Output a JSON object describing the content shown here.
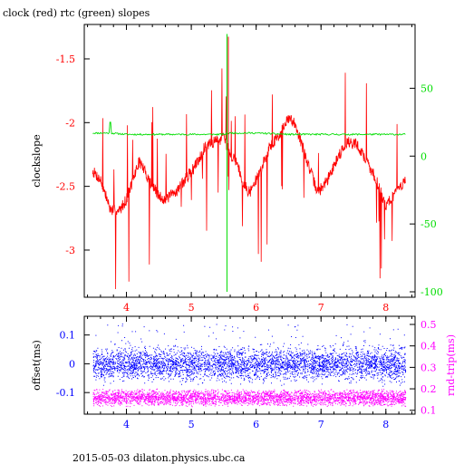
{
  "chart_data": [
    {
      "type": "line",
      "title": "clock (red) rtc (green) slopes",
      "ylabel": "clockslope",
      "xlim": [
        3.35,
        8.45
      ],
      "ylim": [
        -3.37,
        -1.23
      ],
      "xticks": [
        "4",
        "5",
        "6",
        "7",
        "8"
      ],
      "yticks": [
        "-1.5",
        "-2",
        "-2.5",
        "-3"
      ],
      "y2lim": [
        -104,
        97
      ],
      "y2ticks": [
        "50",
        "0",
        "-50",
        "-100"
      ],
      "colors": {
        "left_axis": "#ff0000",
        "right_axis": "#00dd00",
        "bottom_axis": "#ff0000"
      },
      "series": [
        {
          "color": "#ff0000",
          "axis": "left",
          "x": [
            3.48,
            3.6,
            3.75,
            3.88,
            4.0,
            4.2,
            4.35,
            4.5,
            4.6,
            4.75,
            4.9,
            5.05,
            5.2,
            5.35,
            5.5,
            5.6,
            5.7,
            5.8,
            5.9,
            6.05,
            6.2,
            6.35,
            6.5,
            6.6,
            6.72,
            6.85,
            6.95,
            7.1,
            7.25,
            7.4,
            7.55,
            7.7,
            7.85,
            8.0,
            8.15,
            8.3
          ],
          "y": [
            -2.38,
            -2.45,
            -2.68,
            -2.7,
            -2.6,
            -2.3,
            -2.45,
            -2.58,
            -2.6,
            -2.55,
            -2.45,
            -2.35,
            -2.2,
            -2.15,
            -2.12,
            -2.25,
            -2.3,
            -2.48,
            -2.55,
            -2.4,
            -2.2,
            -2.1,
            -1.97,
            -2.0,
            -2.2,
            -2.4,
            -2.55,
            -2.45,
            -2.28,
            -2.15,
            -2.17,
            -2.3,
            -2.45,
            -2.65,
            -2.55,
            -2.45
          ]
        },
        {
          "color": "#00dd00",
          "axis": "right",
          "x": [
            3.48,
            3.75,
            4.0,
            4.5,
            5.0,
            5.5,
            5.6,
            6.0,
            6.5,
            7.0,
            7.5,
            8.0,
            8.3
          ],
          "y": [
            17,
            17,
            16,
            16,
            16,
            16,
            17,
            17,
            16,
            16,
            16,
            16,
            16
          ]
        }
      ],
      "annotations": "red series has many short vertical spikes; green series has a single large spike near x = 5.55 reaching about +90 and -100"
    },
    {
      "type": "scatter",
      "ylabel": "offset(ms)",
      "y2label": "rnd-trip(ms)",
      "xlim": [
        3.35,
        8.45
      ],
      "ylim": [
        -0.175,
        0.165
      ],
      "xticks": [
        "4",
        "5",
        "6",
        "7",
        "8"
      ],
      "yticks": [
        "0.1",
        "0",
        "-0.1"
      ],
      "y2lim": [
        0.082,
        0.538
      ],
      "y2ticks": [
        "0.5",
        "0.4",
        "0.3",
        "0.2",
        "0.1"
      ],
      "colors": {
        "left_axis": "#0000ff",
        "right_axis": "#ff00ff",
        "bottom_axis": "#0000ff"
      },
      "series": [
        {
          "color": "#0000ff",
          "axis": "left",
          "x_range": [
            3.48,
            8.3
          ],
          "y_center": 0.0,
          "y_spread": [
            -0.05,
            0.05
          ],
          "outliers_up_to": 0.14
        },
        {
          "color": "#ff00ff",
          "axis": "right",
          "x_range": [
            3.48,
            8.3
          ],
          "y_center": 0.16,
          "y_spread": [
            0.13,
            0.2
          ]
        }
      ]
    }
  ],
  "footer": "2015-05-03  dilaton.physics.ubc.ca"
}
